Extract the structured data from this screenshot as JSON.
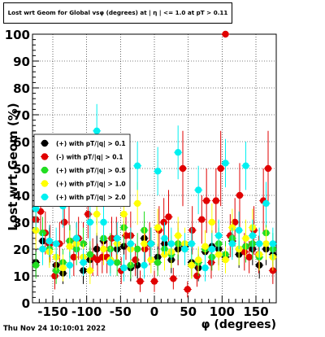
{
  "title": "Lost wrt Geom for Global vsφ (degrees) at | η | <= 1.0 at pT > 0.11",
  "footer_date": "Thu Nov 24 10:10:01 2022",
  "chart_data": {
    "type": "scatter",
    "title": "Lost wrt Geom for Global vsφ (degrees) at | η | <= 1.0 at pT > 0.11",
    "xlabel": "φ (degrees)",
    "ylabel": "Lost wrt Geom (%)",
    "xlim": [
      -180,
      180
    ],
    "ylim": [
      0,
      100
    ],
    "x_ticks": [
      -150,
      -100,
      -50,
      0,
      50,
      100,
      150
    ],
    "y_ticks": [
      0,
      10,
      20,
      30,
      40,
      50,
      60,
      70,
      80,
      90,
      100
    ],
    "grid": true,
    "legend_position": "center-left",
    "series": [
      {
        "name": "(+) with pT/|q| > 0.1",
        "color": "#000000",
        "x": [
          -175,
          -165,
          -155,
          -145,
          -135,
          -125,
          -115,
          -105,
          -95,
          -85,
          -75,
          -65,
          -55,
          -45,
          -35,
          -25,
          -15,
          -5,
          5,
          15,
          25,
          35,
          45,
          55,
          65,
          75,
          85,
          95,
          105,
          115,
          125,
          135,
          145,
          155,
          165,
          175
        ],
        "y": [
          15,
          23,
          22,
          14,
          11,
          23,
          24,
          12,
          16,
          20,
          23,
          16,
          20,
          21,
          13,
          14,
          24,
          22,
          17,
          22,
          16,
          20,
          21,
          15,
          13,
          19,
          21,
          20,
          17,
          23,
          18,
          21,
          20,
          14,
          20,
          18
        ],
        "err": [
          5,
          6,
          6,
          5,
          4,
          6,
          6,
          5,
          5,
          6,
          6,
          5,
          6,
          6,
          5,
          5,
          6,
          6,
          5,
          6,
          5,
          6,
          6,
          5,
          5,
          6,
          6,
          6,
          5,
          6,
          5,
          6,
          6,
          5,
          6,
          5
        ]
      },
      {
        "name": "(-) with pT/|q| > 0.1",
        "color": "#e00000",
        "x": [
          -175,
          -168,
          -161,
          -154,
          -147,
          -140,
          -133,
          -126,
          -119,
          -112,
          -105,
          -98,
          -91,
          -84,
          -77,
          -70,
          -63,
          -56,
          -49,
          -42,
          -35,
          -28,
          -21,
          -14,
          -7,
          0,
          7,
          14,
          21,
          28,
          35,
          42,
          49,
          56,
          63,
          70,
          77,
          84,
          91,
          98,
          105,
          112,
          119,
          126,
          133,
          140,
          147,
          154,
          161,
          168,
          175
        ],
        "y": [
          31,
          34,
          26,
          22,
          10,
          22,
          30,
          41,
          17,
          24,
          22,
          33,
          17,
          16,
          17,
          17,
          24,
          24,
          12,
          25,
          25,
          16,
          8,
          20,
          22,
          8,
          27,
          30,
          32,
          9,
          22,
          50,
          5,
          27,
          10,
          31,
          38,
          15,
          38,
          50,
          100,
          25,
          30,
          40,
          19,
          17,
          27,
          18,
          38,
          50,
          12
        ],
        "err": [
          8,
          9,
          8,
          7,
          5,
          8,
          8,
          12,
          7,
          8,
          8,
          9,
          7,
          6,
          6,
          6,
          8,
          8,
          5,
          9,
          9,
          6,
          4,
          7,
          8,
          4,
          9,
          9,
          10,
          4,
          8,
          14,
          3,
          9,
          4,
          9,
          12,
          6,
          12,
          14,
          0,
          8,
          9,
          12,
          7,
          6,
          9,
          7,
          12,
          14,
          5
        ]
      },
      {
        "name": "(+) with pT/|q| > 0.5",
        "color": "#22dd22",
        "x": [
          -175,
          -165,
          -155,
          -145,
          -135,
          -125,
          -115,
          -105,
          -95,
          -85,
          -75,
          -65,
          -55,
          -45,
          -35,
          -25,
          -15,
          -5,
          5,
          15,
          25,
          35,
          45,
          55,
          65,
          75,
          85,
          95,
          105,
          115,
          125,
          135,
          145,
          155,
          165,
          175
        ],
        "y": [
          14,
          26,
          20,
          12,
          15,
          23,
          20,
          22,
          18,
          37,
          24,
          20,
          15,
          28,
          14,
          20,
          27,
          22,
          15,
          20,
          18,
          22,
          20,
          14,
          15,
          20,
          17,
          22,
          18,
          24,
          20,
          21,
          22,
          17,
          26,
          20
        ],
        "err": [
          5,
          6,
          6,
          5,
          5,
          6,
          6,
          6,
          5,
          8,
          6,
          6,
          5,
          7,
          5,
          6,
          7,
          6,
          5,
          6,
          5,
          6,
          6,
          5,
          5,
          6,
          5,
          6,
          5,
          6,
          6,
          6,
          6,
          5,
          7,
          6
        ]
      },
      {
        "name": "(+) with pT/|q| > 1.0",
        "color": "#ffff00",
        "x": [
          -175,
          -165,
          -155,
          -145,
          -135,
          -125,
          -115,
          -105,
          -95,
          -85,
          -75,
          -65,
          -55,
          -45,
          -35,
          -25,
          -15,
          -5,
          5,
          15,
          25,
          35,
          45,
          55,
          65,
          75,
          85,
          95,
          105,
          115,
          125,
          135,
          145,
          155,
          165,
          175
        ],
        "y": [
          27,
          20,
          19,
          17,
          13,
          21,
          22,
          17,
          12,
          33,
          20,
          16,
          22,
          33,
          20,
          37,
          22,
          16,
          28,
          18,
          19,
          25,
          22,
          14,
          16,
          21,
          30,
          18,
          16,
          28,
          20,
          24,
          28,
          18,
          22,
          17
        ],
        "err": [
          7,
          6,
          6,
          5,
          5,
          6,
          6,
          5,
          5,
          8,
          6,
          5,
          6,
          8,
          6,
          8,
          6,
          5,
          7,
          6,
          6,
          7,
          6,
          5,
          5,
          6,
          7,
          6,
          5,
          7,
          6,
          7,
          7,
          6,
          6,
          5
        ]
      },
      {
        "name": "(+) with pT/|q| > 2.0",
        "color": "#00f0f0",
        "x": [
          -175,
          -165,
          -155,
          -145,
          -135,
          -125,
          -115,
          -105,
          -95,
          -85,
          -75,
          -65,
          -55,
          -45,
          -35,
          -25,
          -15,
          -5,
          5,
          15,
          25,
          35,
          45,
          55,
          65,
          75,
          85,
          95,
          105,
          115,
          125,
          135,
          145,
          155,
          165,
          175
        ],
        "y": [
          35,
          20,
          23,
          22,
          36,
          14,
          24,
          15,
          30,
          64,
          30,
          15,
          24,
          13,
          22,
          51,
          14,
          22,
          49,
          24,
          22,
          56,
          20,
          22,
          42,
          13,
          20,
          25,
          52,
          22,
          27,
          51,
          25,
          22,
          37,
          22
        ],
        "err": [
          8,
          6,
          6,
          6,
          8,
          5,
          6,
          5,
          7,
          10,
          7,
          5,
          6,
          5,
          6,
          9,
          5,
          6,
          9,
          6,
          6,
          10,
          6,
          6,
          9,
          5,
          6,
          6,
          9,
          6,
          7,
          9,
          6,
          6,
          8,
          6
        ]
      }
    ]
  }
}
